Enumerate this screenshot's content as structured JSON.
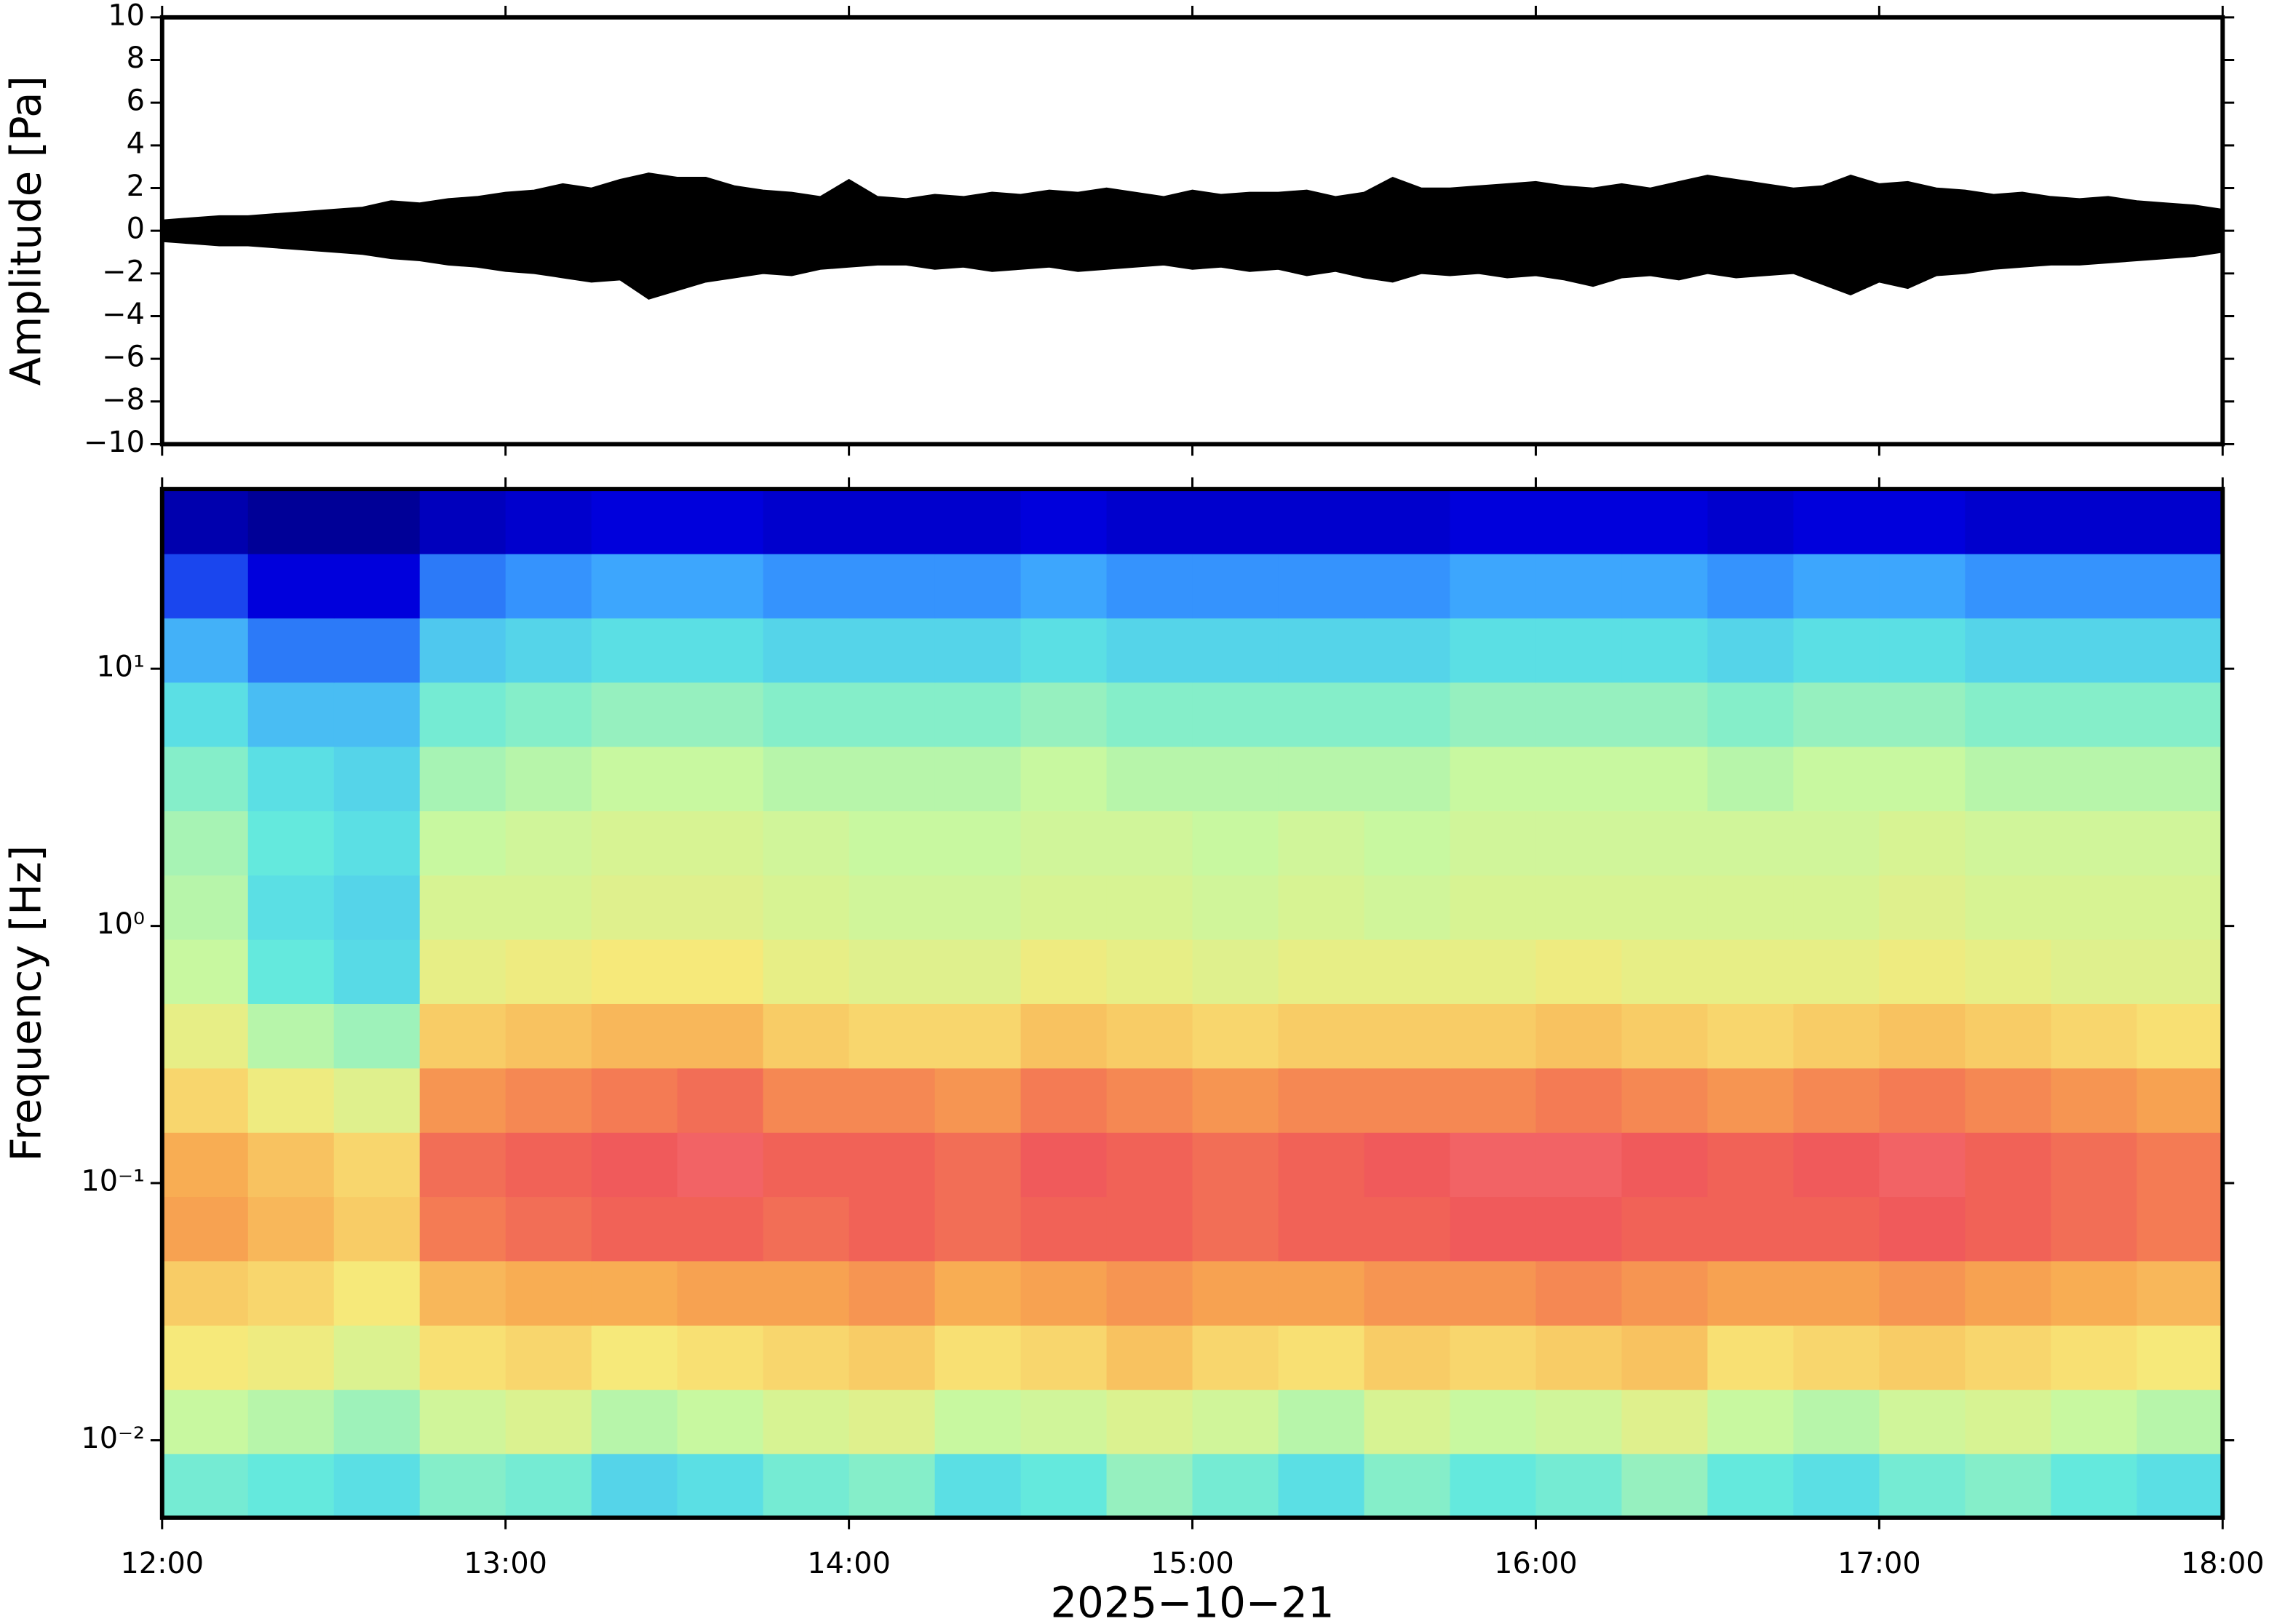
{
  "chart_data": [
    {
      "type": "envelope",
      "ylabel": "Amplitude [Pa]",
      "xlim": [
        12,
        18
      ],
      "xticks": [
        12,
        13,
        14,
        15,
        16,
        17,
        18
      ],
      "ylim": [
        -10,
        10
      ],
      "yticks": [
        {
          "value": -10,
          "label": "−10"
        },
        {
          "value": -8,
          "label": "−8"
        },
        {
          "value": -6,
          "label": "−6"
        },
        {
          "value": -4,
          "label": "−4"
        },
        {
          "value": -2,
          "label": "−2"
        },
        0,
        2,
        4,
        6,
        8,
        10
      ],
      "x": [
        12.0,
        12.0833,
        12.1667,
        12.25,
        12.3333,
        12.4167,
        12.5,
        12.5833,
        12.6667,
        12.75,
        12.8333,
        12.9167,
        13.0,
        13.0833,
        13.1667,
        13.25,
        13.3333,
        13.4167,
        13.5,
        13.5833,
        13.6667,
        13.75,
        13.8333,
        13.9167,
        14.0,
        14.0833,
        14.1667,
        14.25,
        14.3333,
        14.4167,
        14.5,
        14.5833,
        14.6667,
        14.75,
        14.8333,
        14.9167,
        15.0,
        15.0833,
        15.1667,
        15.25,
        15.3333,
        15.4167,
        15.5,
        15.5833,
        15.6667,
        15.75,
        15.8333,
        15.9167,
        16.0,
        16.0833,
        16.1667,
        16.25,
        16.3333,
        16.4167,
        16.5,
        16.5833,
        16.6667,
        16.75,
        16.8333,
        16.9167,
        17.0,
        17.0833,
        17.1667,
        17.25,
        17.3333,
        17.4167,
        17.5,
        17.5833,
        17.6667,
        17.75,
        17.8333,
        17.9167,
        18.0
      ],
      "series": [
        {
          "color": "#000000",
          "values": [
            0.5,
            0.6,
            0.7,
            0.7,
            0.8,
            0.9,
            1.0,
            1.1,
            1.4,
            1.3,
            1.5,
            1.6,
            1.8,
            1.9,
            2.2,
            2.0,
            2.4,
            2.7,
            2.5,
            2.5,
            2.1,
            1.9,
            1.8,
            1.6,
            2.4,
            1.6,
            1.5,
            1.7,
            1.6,
            1.8,
            1.7,
            1.9,
            1.8,
            2.0,
            1.8,
            1.6,
            1.9,
            1.7,
            1.8,
            1.8,
            1.9,
            1.6,
            1.8,
            2.5,
            2.0,
            2.0,
            2.1,
            2.2,
            2.3,
            2.1,
            2.0,
            2.2,
            2.0,
            2.3,
            2.6,
            2.4,
            2.2,
            2.0,
            2.1,
            2.6,
            2.2,
            2.3,
            2.0,
            1.9,
            1.7,
            1.8,
            1.6,
            1.5,
            1.6,
            1.4,
            1.3,
            1.2,
            1.0
          ]
        },
        {
          "color": "#000000",
          "values": [
            -0.5,
            -0.6,
            -0.7,
            -0.7,
            -0.8,
            -0.9,
            -1.0,
            -1.1,
            -1.3,
            -1.4,
            -1.6,
            -1.7,
            -1.9,
            -2.0,
            -2.2,
            -2.4,
            -2.3,
            -3.2,
            -2.8,
            -2.4,
            -2.2,
            -2.0,
            -2.1,
            -1.8,
            -1.7,
            -1.6,
            -1.6,
            -1.8,
            -1.7,
            -1.9,
            -1.8,
            -1.7,
            -1.9,
            -1.8,
            -1.7,
            -1.6,
            -1.8,
            -1.7,
            -1.9,
            -1.8,
            -2.1,
            -1.9,
            -2.2,
            -2.4,
            -2.0,
            -2.1,
            -2.0,
            -2.2,
            -2.1,
            -2.3,
            -2.6,
            -2.2,
            -2.1,
            -2.3,
            -2.0,
            -2.2,
            -2.1,
            -2.0,
            -2.5,
            -3.0,
            -2.4,
            -2.7,
            -2.1,
            -2.0,
            -1.8,
            -1.7,
            -1.6,
            -1.6,
            -1.5,
            -1.4,
            -1.3,
            -1.2,
            -1.0
          ]
        }
      ]
    },
    {
      "type": "heatmap",
      "ylabel": "Frequency [Hz]",
      "xlabel": "2025−10−21",
      "xlim": [
        12,
        18
      ],
      "xticks": [
        {
          "value": 12,
          "label": "12:00"
        },
        {
          "value": 13,
          "label": "13:00"
        },
        {
          "value": 14,
          "label": "14:00"
        },
        {
          "value": 15,
          "label": "15:00"
        },
        {
          "value": 16,
          "label": "16:00"
        },
        {
          "value": 17,
          "label": "17:00"
        },
        {
          "value": 18,
          "label": "18:00"
        }
      ],
      "ylim": [
        0.005,
        50
      ],
      "log_y": true,
      "yticks": [
        {
          "value": 0.01,
          "label": "10⁻²"
        },
        {
          "value": 0.1,
          "label": "10⁻¹"
        },
        {
          "value": 1,
          "label": "10⁰"
        },
        {
          "value": 10,
          "label": "10¹"
        }
      ],
      "x": [
        12,
        12.25,
        12.5,
        12.75,
        13,
        13.25,
        13.5,
        13.75,
        14,
        14.25,
        14.5,
        14.75,
        15,
        15.25,
        15.5,
        15.75,
        16,
        16.25,
        16.5,
        16.75,
        17,
        17.25,
        17.5,
        17.75,
        18
      ],
      "y": [
        0.005,
        0.0089,
        0.0158,
        0.0281,
        0.05,
        0.0889,
        0.158,
        0.281,
        0.5,
        0.889,
        1.58,
        2.81,
        5,
        8.89,
        15.8,
        28.1,
        50
      ],
      "zlim": [
        0,
        1
      ],
      "colormap": [
        "#000080",
        "#0000e0",
        "#3aa0ff",
        "#60e8e0",
        "#c8f8a0",
        "#f8e878",
        "#f8a850",
        "#f05858",
        "#f89098"
      ],
      "z": [
        [
          0.4,
          0.38,
          0.36,
          0.42,
          0.4,
          0.34,
          0.36,
          0.4,
          0.42,
          0.36,
          0.38,
          0.44,
          0.4,
          0.36,
          0.42,
          0.38,
          0.4,
          0.44,
          0.38,
          0.36,
          0.4,
          0.42,
          0.38,
          0.36
        ],
        [
          0.5,
          0.48,
          0.45,
          0.52,
          0.55,
          0.48,
          0.5,
          0.54,
          0.56,
          0.5,
          0.52,
          0.55,
          0.52,
          0.48,
          0.54,
          0.5,
          0.52,
          0.56,
          0.5,
          0.48,
          0.52,
          0.54,
          0.5,
          0.48
        ],
        [
          0.62,
          0.6,
          0.55,
          0.64,
          0.66,
          0.62,
          0.64,
          0.66,
          0.68,
          0.64,
          0.66,
          0.7,
          0.66,
          0.64,
          0.68,
          0.66,
          0.68,
          0.7,
          0.64,
          0.66,
          0.68,
          0.66,
          0.64,
          0.62
        ],
        [
          0.68,
          0.66,
          0.62,
          0.72,
          0.74,
          0.74,
          0.76,
          0.76,
          0.78,
          0.74,
          0.76,
          0.78,
          0.76,
          0.76,
          0.78,
          0.78,
          0.8,
          0.78,
          0.76,
          0.76,
          0.78,
          0.76,
          0.74,
          0.72
        ],
        [
          0.76,
          0.72,
          0.68,
          0.82,
          0.84,
          0.86,
          0.86,
          0.84,
          0.86,
          0.84,
          0.86,
          0.86,
          0.84,
          0.86,
          0.86,
          0.88,
          0.88,
          0.86,
          0.86,
          0.86,
          0.88,
          0.86,
          0.84,
          0.82
        ],
        [
          0.74,
          0.7,
          0.66,
          0.84,
          0.86,
          0.88,
          0.9,
          0.86,
          0.86,
          0.84,
          0.88,
          0.86,
          0.84,
          0.86,
          0.88,
          0.9,
          0.9,
          0.88,
          0.86,
          0.88,
          0.9,
          0.86,
          0.84,
          0.82
        ],
        [
          0.66,
          0.6,
          0.56,
          0.78,
          0.8,
          0.82,
          0.84,
          0.8,
          0.8,
          0.78,
          0.82,
          0.8,
          0.78,
          0.8,
          0.8,
          0.8,
          0.82,
          0.8,
          0.78,
          0.8,
          0.82,
          0.8,
          0.78,
          0.76
        ],
        [
          0.58,
          0.48,
          0.45,
          0.68,
          0.7,
          0.72,
          0.72,
          0.68,
          0.66,
          0.66,
          0.7,
          0.68,
          0.66,
          0.68,
          0.68,
          0.68,
          0.7,
          0.68,
          0.66,
          0.68,
          0.7,
          0.68,
          0.66,
          0.64
        ],
        [
          0.5,
          0.38,
          0.35,
          0.58,
          0.6,
          0.62,
          0.62,
          0.58,
          0.56,
          0.56,
          0.6,
          0.58,
          0.56,
          0.58,
          0.58,
          0.58,
          0.6,
          0.58,
          0.58,
          0.58,
          0.6,
          0.58,
          0.56,
          0.56
        ],
        [
          0.48,
          0.36,
          0.34,
          0.54,
          0.54,
          0.56,
          0.56,
          0.54,
          0.52,
          0.52,
          0.54,
          0.54,
          0.52,
          0.54,
          0.52,
          0.54,
          0.54,
          0.54,
          0.54,
          0.54,
          0.56,
          0.54,
          0.54,
          0.54
        ],
        [
          0.46,
          0.38,
          0.36,
          0.5,
          0.52,
          0.54,
          0.54,
          0.52,
          0.5,
          0.5,
          0.52,
          0.52,
          0.5,
          0.52,
          0.5,
          0.52,
          0.52,
          0.52,
          0.52,
          0.52,
          0.54,
          0.52,
          0.52,
          0.52
        ],
        [
          0.42,
          0.36,
          0.34,
          0.46,
          0.48,
          0.5,
          0.5,
          0.48,
          0.48,
          0.48,
          0.5,
          0.48,
          0.48,
          0.48,
          0.48,
          0.5,
          0.5,
          0.5,
          0.48,
          0.5,
          0.5,
          0.48,
          0.48,
          0.48
        ],
        [
          0.36,
          0.3,
          0.3,
          0.4,
          0.42,
          0.44,
          0.44,
          0.42,
          0.42,
          0.42,
          0.44,
          0.42,
          0.42,
          0.42,
          0.42,
          0.44,
          0.44,
          0.44,
          0.42,
          0.44,
          0.44,
          0.42,
          0.42,
          0.42
        ],
        [
          0.28,
          0.22,
          0.22,
          0.32,
          0.34,
          0.36,
          0.36,
          0.34,
          0.34,
          0.34,
          0.36,
          0.34,
          0.34,
          0.34,
          0.34,
          0.36,
          0.36,
          0.36,
          0.34,
          0.36,
          0.36,
          0.34,
          0.34,
          0.34
        ],
        [
          0.18,
          0.12,
          0.12,
          0.22,
          0.24,
          0.26,
          0.26,
          0.24,
          0.24,
          0.24,
          0.26,
          0.24,
          0.24,
          0.24,
          0.24,
          0.26,
          0.26,
          0.26,
          0.24,
          0.26,
          0.26,
          0.24,
          0.24,
          0.24
        ],
        [
          0.06,
          0.03,
          0.03,
          0.08,
          0.1,
          0.12,
          0.12,
          0.1,
          0.1,
          0.1,
          0.12,
          0.1,
          0.1,
          0.1,
          0.1,
          0.12,
          0.12,
          0.12,
          0.1,
          0.12,
          0.12,
          0.1,
          0.1,
          0.1
        ]
      ]
    }
  ]
}
